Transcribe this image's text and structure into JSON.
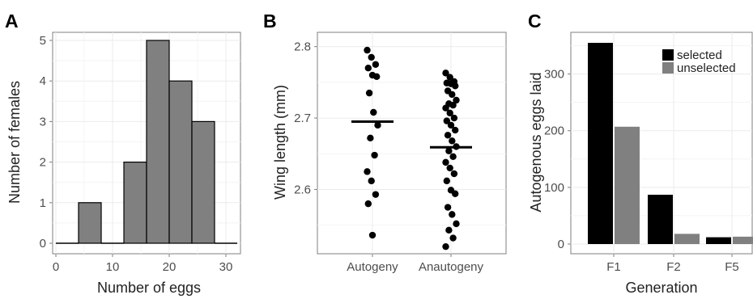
{
  "chart_data": [
    {
      "panel": "A",
      "type": "bar",
      "xlabel": "Number of eggs",
      "ylabel": "Number of females",
      "xlim": [
        0,
        32
      ],
      "ylim": [
        0,
        5
      ],
      "x_ticks": [
        "0",
        "10",
        "20",
        "30"
      ],
      "y_ticks": [
        "0",
        "1",
        "2",
        "3",
        "4",
        "5"
      ],
      "bins": [
        {
          "start": 0,
          "end": 4,
          "count": 0
        },
        {
          "start": 4,
          "end": 8,
          "count": 1
        },
        {
          "start": 8,
          "end": 12,
          "count": 0
        },
        {
          "start": 12,
          "end": 16,
          "count": 2
        },
        {
          "start": 16,
          "end": 20,
          "count": 5
        },
        {
          "start": 20,
          "end": 24,
          "count": 4
        },
        {
          "start": 24,
          "end": 28,
          "count": 3
        },
        {
          "start": 28,
          "end": 32,
          "count": 0
        }
      ],
      "bar_color": "#808080",
      "grid": true
    },
    {
      "panel": "B",
      "type": "scatter",
      "xlabel": "",
      "ylabel": "Wing length (mm)",
      "categories": [
        "Autogeny",
        "Anautogeny"
      ],
      "ylim": [
        2.51,
        2.82
      ],
      "y_ticks": [
        "2.6",
        "2.7",
        "2.8"
      ],
      "series": [
        {
          "category": "Autogeny",
          "mean": 2.695,
          "values": [
            2.795,
            2.785,
            2.775,
            2.77,
            2.76,
            2.758,
            2.735,
            2.708,
            2.69,
            2.672,
            2.648,
            2.625,
            2.612,
            2.593,
            2.58,
            2.536
          ]
        },
        {
          "category": "Anautogeny",
          "mean": 2.659,
          "values": [
            2.763,
            2.757,
            2.751,
            2.749,
            2.748,
            2.745,
            2.738,
            2.733,
            2.725,
            2.72,
            2.718,
            2.714,
            2.707,
            2.7,
            2.696,
            2.69,
            2.683,
            2.676,
            2.668,
            2.66,
            2.654,
            2.646,
            2.638,
            2.63,
            2.622,
            2.612,
            2.599,
            2.594,
            2.575,
            2.565,
            2.552,
            2.543,
            2.532,
            2.52
          ]
        }
      ],
      "grid": true
    },
    {
      "panel": "C",
      "type": "bar",
      "xlabel": "Generation",
      "ylabel": "Autogenous eggs laid",
      "categories": [
        "F1",
        "F2",
        "F5"
      ],
      "ylim": [
        0,
        365
      ],
      "y_ticks": [
        "0",
        "100",
        "200",
        "300"
      ],
      "series": [
        {
          "name": "selected",
          "color": "#000000",
          "values": [
            355,
            87,
            12
          ]
        },
        {
          "name": "unselected",
          "color": "#808080",
          "values": [
            207,
            18,
            13
          ]
        }
      ],
      "legend": "top-right",
      "grid": true
    }
  ],
  "panels": {
    "a": {
      "letter": "A"
    },
    "b": {
      "letter": "B"
    },
    "c": {
      "letter": "C"
    }
  }
}
